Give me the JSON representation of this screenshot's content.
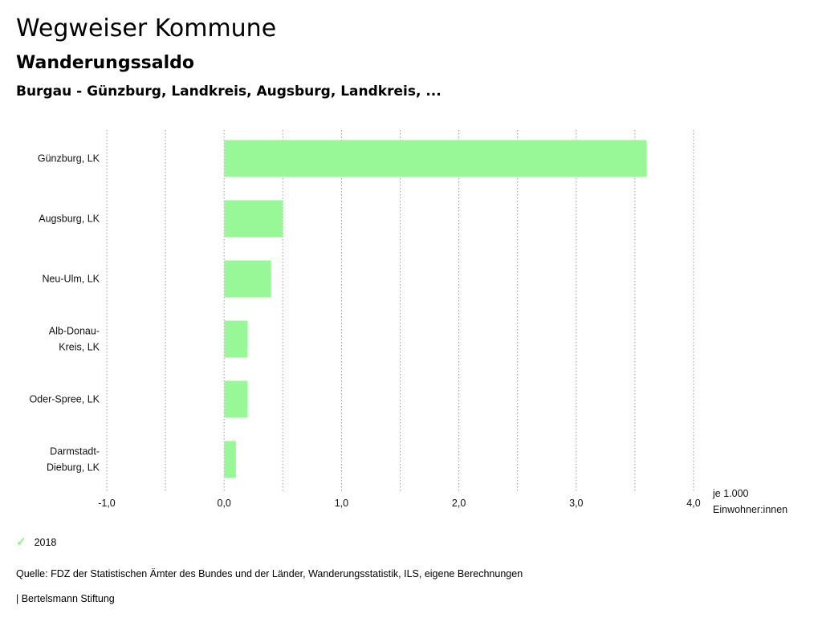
{
  "header": {
    "title": "Wegweiser Kommune",
    "subtitle": "Wanderungssaldo",
    "region": "Burgau - Günzburg, Landkreis, Augsburg, Landkreis, ..."
  },
  "chart_data": {
    "type": "bar",
    "orientation": "horizontal",
    "categories": [
      [
        "Günzburg, LK"
      ],
      [
        "Augsburg, LK"
      ],
      [
        "Neu-Ulm, LK"
      ],
      [
        "Alb-Donau-",
        "Kreis, LK"
      ],
      [
        "Oder-Spree, LK"
      ],
      [
        "Darmstadt-",
        "Dieburg, LK"
      ]
    ],
    "series": [
      {
        "name": "2018",
        "values": [
          3.6,
          0.5,
          0.4,
          0.2,
          0.2,
          0.1
        ]
      }
    ],
    "xlim": [
      -1.0,
      4.0
    ],
    "xticks": [
      -1.0,
      0.0,
      1.0,
      2.0,
      3.0,
      4.0
    ],
    "xtick_labels": [
      "-1,0",
      "0,0",
      "1,0",
      "2,0",
      "3,0",
      "4,0"
    ],
    "xlabel": [
      "je 1.000",
      "Einwohner:innen"
    ],
    "grid": true,
    "bar_color": "#98f898"
  },
  "legend": {
    "label": "2018",
    "color": "#8ef28e"
  },
  "footer": {
    "source": "Quelle: FDZ der Statistischen Ämter des Bundes und der Länder, Wanderungsstatistik, ILS, eigene Berechnungen",
    "brand": "| Bertelsmann Stiftung"
  }
}
